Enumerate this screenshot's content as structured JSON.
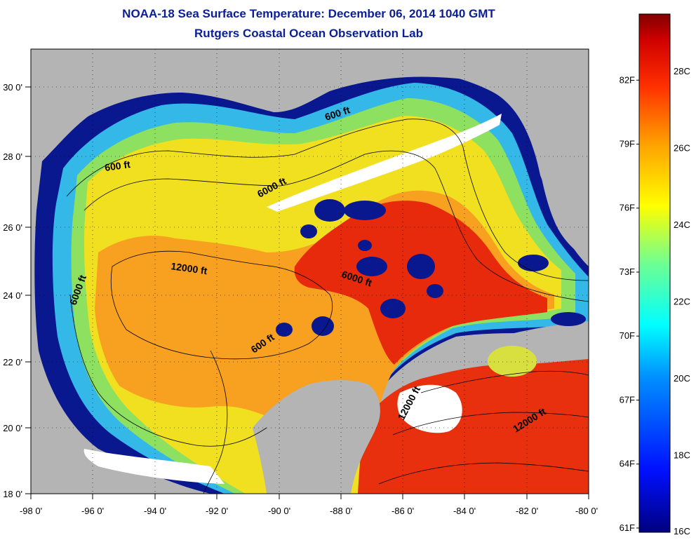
{
  "title": {
    "line1": "NOAA-18 Sea Surface Temperature:  December 06, 2014 1040 GMT",
    "line2": "Rutgers Coastal Ocean Observation Lab"
  },
  "map": {
    "lon_range": [
      -98,
      -80
    ],
    "lat_range": [
      18,
      31
    ],
    "x_tick_labels": [
      "-98 0'",
      "-96 0'",
      "-94 0'",
      "-92 0'",
      "-90 0'",
      "-88 0'",
      "-86 0'",
      "-84 0'",
      "-82 0'",
      "-80 0'"
    ],
    "y_tick_labels": [
      "18 0'",
      "20 0'",
      "22 0'",
      "24 0'",
      "26 0'",
      "28 0'",
      "30 0'"
    ],
    "contour_labels": [
      "600 ft",
      "600 ft",
      "6000 ft",
      "12000 ft",
      "6000 ft",
      "6000 ft",
      "600 ft",
      "12000 ft",
      "12000 ft"
    ],
    "colors": {
      "land": "#b4b4b4",
      "cloud": "#ffffff",
      "cold": "#0a1890",
      "warm": "#f07010",
      "hot": "#e81c0c"
    }
  },
  "colorbar": {
    "range_c": [
      16,
      29.5
    ],
    "celsius_labels": [
      "16C",
      "18C",
      "20C",
      "22C",
      "24C",
      "26C",
      "28C"
    ],
    "fahrenheit_labels": [
      "61F",
      "64F",
      "67F",
      "70F",
      "73F",
      "76F",
      "79F",
      "82F"
    ]
  }
}
